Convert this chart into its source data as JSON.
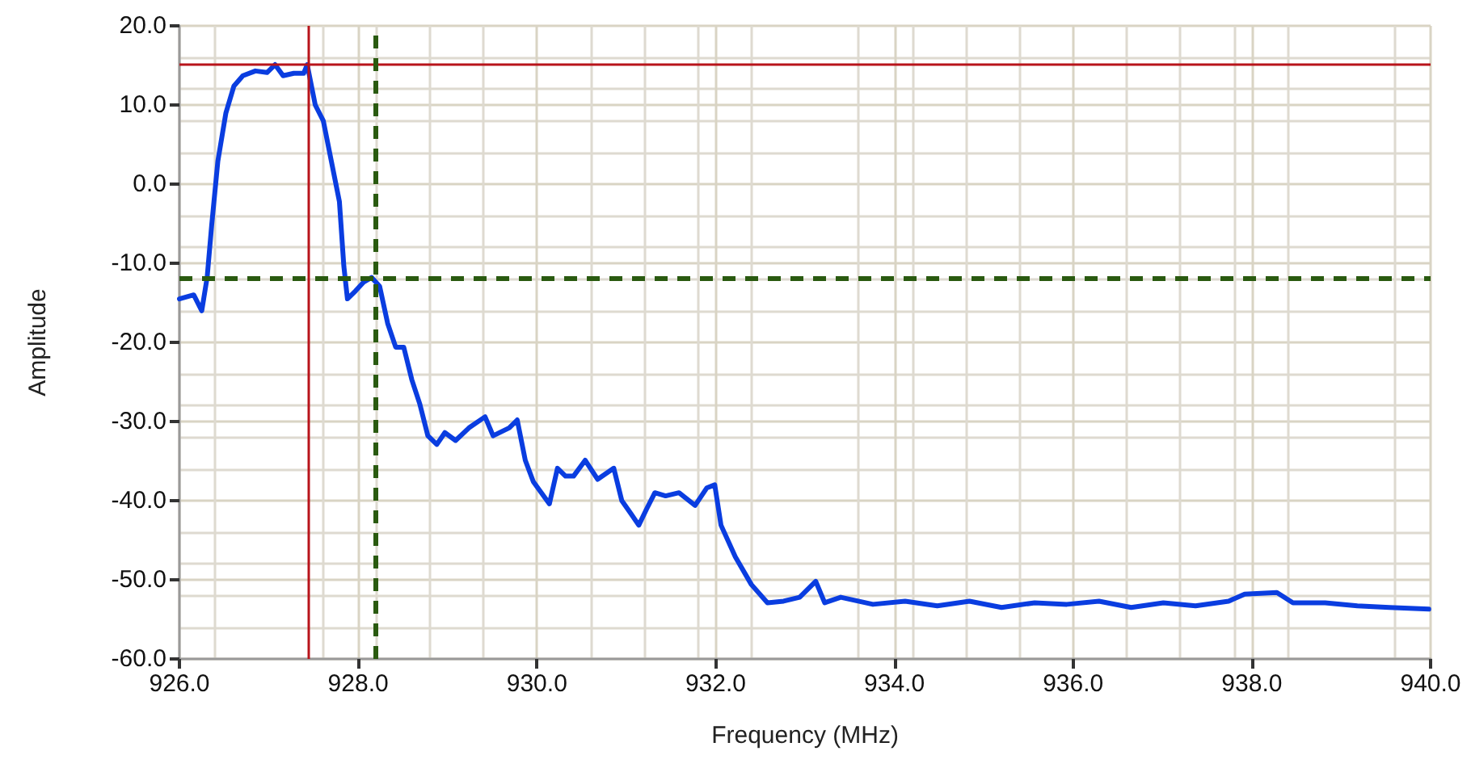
{
  "chart_data": {
    "type": "line",
    "xlabel": "Frequency (MHz)",
    "ylabel": "Amplitude",
    "x": [
      926.0,
      926.16,
      926.25,
      926.31,
      926.36,
      926.43,
      926.52,
      926.61,
      926.71,
      926.85,
      926.98,
      927.07,
      927.16,
      927.28,
      927.39,
      927.43,
      927.52,
      927.61,
      927.7,
      927.79,
      927.84,
      927.88,
      927.97,
      928.06,
      928.15,
      928.24,
      928.33,
      928.42,
      928.51,
      928.6,
      928.69,
      928.78,
      928.88,
      928.97,
      929.09,
      929.24,
      929.42,
      929.51,
      929.69,
      929.78,
      929.87,
      929.96,
      930.14,
      930.23,
      930.32,
      930.41,
      930.54,
      930.68,
      930.86,
      930.95,
      931.05,
      931.14,
      931.23,
      931.32,
      931.44,
      931.59,
      931.77,
      931.9,
      931.99,
      932.06,
      932.22,
      932.4,
      932.58,
      932.76,
      932.94,
      933.12,
      933.22,
      933.4,
      933.76,
      934.12,
      934.48,
      934.84,
      935.2,
      935.57,
      935.93,
      936.29,
      936.65,
      937.01,
      937.37,
      937.74,
      937.92,
      938.28,
      938.46,
      938.82,
      939.18,
      939.54,
      939.98
    ],
    "series": [
      {
        "color": "#0a3de0",
        "values": [
          -14.5,
          -14,
          -16,
          -11.8,
          -5.3,
          2.9,
          9,
          12.4,
          13.7,
          14.3,
          14.1,
          15.1,
          13.7,
          14,
          14,
          15.1,
          10,
          8,
          2.9,
          -2.2,
          -10.4,
          -14.5,
          -13.5,
          -12.4,
          -11.8,
          -12.9,
          -17.6,
          -20.6,
          -20.6,
          -24.7,
          -27.8,
          -31.8,
          -32.9,
          -31.4,
          -32.4,
          -30.8,
          -29.4,
          -31.8,
          -30.8,
          -29.8,
          -34.9,
          -37.6,
          -40.4,
          -35.9,
          -36.9,
          -36.9,
          -34.9,
          -37.3,
          -35.9,
          -40,
          -41.6,
          -43.1,
          -41,
          -39,
          -39.4,
          -39,
          -40.6,
          -38.4,
          -38,
          -43.1,
          -47.1,
          -50.6,
          -52.9,
          -52.7,
          -52.2,
          -50.2,
          -52.9,
          -52.2,
          -53.1,
          -52.7,
          -53.3,
          -52.7,
          -53.5,
          -52.9,
          -53.1,
          -52.7,
          -53.5,
          -52.9,
          -53.3,
          -52.7,
          -51.8,
          -51.6,
          -52.9,
          -52.9,
          -53.3,
          -53.5,
          -53.7
        ]
      }
    ],
    "xlim": [
      926,
      940
    ],
    "xticks": [
      {
        "value": 926,
        "label": "926.0"
      },
      {
        "value": 928,
        "label": "928.0"
      },
      {
        "value": 930,
        "label": "930.0"
      },
      {
        "value": 932,
        "label": "932.0"
      },
      {
        "value": 934,
        "label": "934.0"
      },
      {
        "value": 936,
        "label": "936.0"
      },
      {
        "value": 938,
        "label": "938.0"
      },
      {
        "value": 940,
        "label": "940.0"
      }
    ],
    "ylim": [
      -60,
      20
    ],
    "yticks": [
      {
        "value": -60,
        "label": "-60.0"
      },
      {
        "value": -50,
        "label": "-50.0"
      },
      {
        "value": -40,
        "label": "-40.0"
      },
      {
        "value": -30,
        "label": "-30.0"
      },
      {
        "value": -20,
        "label": "-20.0"
      },
      {
        "value": -10,
        "label": "-10.0"
      },
      {
        "value": 0,
        "label": "0.0"
      },
      {
        "value": 10,
        "label": "10.0"
      },
      {
        "value": 20,
        "label": "20.0"
      }
    ],
    "ref_lines": [
      {
        "axis": "x",
        "value": 927.45,
        "color": "#b8141b",
        "line_style": "solid"
      },
      {
        "axis": "y",
        "value": 15.1,
        "color": "#b8141b",
        "line_style": "solid"
      },
      {
        "axis": "x",
        "value": 928.19,
        "color": "#2a5a10",
        "line_style": "dashed"
      },
      {
        "axis": "y",
        "value": -11.8,
        "color": "#2a5a10",
        "line_style": "dashed"
      }
    ],
    "grid": true,
    "marker": "none",
    "line_style": "solid"
  }
}
